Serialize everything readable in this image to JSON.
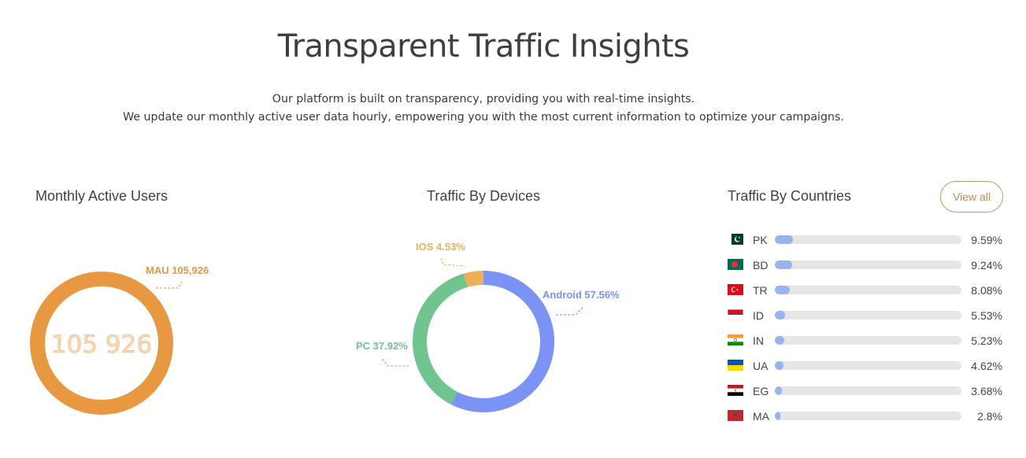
{
  "hero": {
    "title": "Transparent Traffic Insights",
    "subtitle_line1": "Our platform is built on transparency, providing you with real-time insights.",
    "subtitle_line2": "We update our monthly active user data hourly, empowering you with the most current information to optimize your campaigns."
  },
  "mau": {
    "title": "Monthly Active Users",
    "label": "MAU 105,926",
    "center_value": "105 926",
    "color": "#e99842"
  },
  "devices": {
    "title": "Traffic By Devices"
  },
  "countries": {
    "title": "Traffic By Countries",
    "view_all_label": "View all",
    "bar_color": "#97b4ef"
  },
  "chart_data": [
    {
      "type": "pie",
      "title": "Traffic By Devices",
      "style": "donut",
      "slices": [
        {
          "label": "Android 57.56%",
          "name": "Android",
          "value": 57.56,
          "color": "#7b93f5"
        },
        {
          "label": "PC 37.92%",
          "name": "PC",
          "value": 37.92,
          "color": "#6fc490"
        },
        {
          "label": "IOS 4.53%",
          "name": "IOS",
          "value": 4.53,
          "color": "#edb058"
        }
      ]
    },
    {
      "type": "bar",
      "orientation": "horizontal",
      "title": "Traffic By Countries",
      "xlim": [
        0,
        100
      ],
      "categories": [
        "PK",
        "BD",
        "TR",
        "ID",
        "IN",
        "UA",
        "EG",
        "MA"
      ],
      "values": [
        9.59,
        9.24,
        8.08,
        5.53,
        5.23,
        4.62,
        3.68,
        2.8
      ],
      "value_labels": [
        "9.59%",
        "9.24%",
        "8.08%",
        "5.53%",
        "5.23%",
        "4.62%",
        "3.68%",
        "2.8%"
      ],
      "flags": [
        "pk-flag-icon",
        "bd-flag-icon",
        "tr-flag-icon",
        "id-flag-icon",
        "in-flag-icon",
        "ua-flag-icon",
        "eg-flag-icon",
        "ma-flag-icon"
      ]
    }
  ]
}
